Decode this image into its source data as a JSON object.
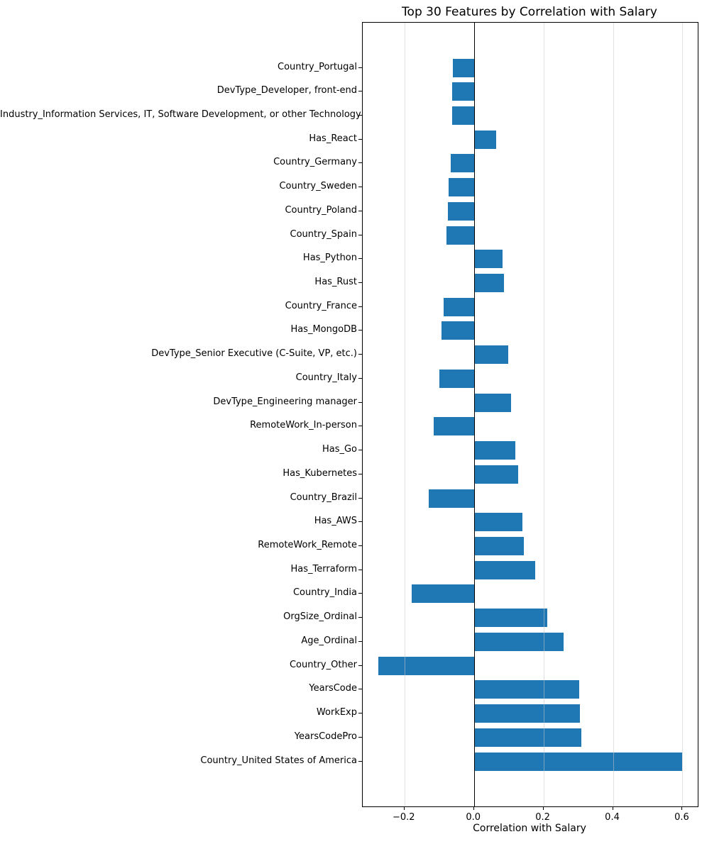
{
  "chart_data": {
    "type": "bar",
    "orientation": "horizontal",
    "title": "Top 30 Features by Correlation with Salary",
    "xlabel": "Correlation with Salary",
    "ylabel": "",
    "bar_color": "#1f77b4",
    "grid": true,
    "grid_color": "#c8c8c8",
    "zero_line_color": "#000000",
    "xlim": [
      -0.32,
      0.644
    ],
    "xticks": [
      -0.2,
      0.0,
      0.2,
      0.4,
      0.6
    ],
    "xtick_labels": [
      "−0.2",
      "0.0",
      "0.2",
      "0.4",
      "0.6"
    ],
    "categories": [
      "Country_Portugal",
      "DevType_Developer, front-end",
      "Industry_Information Services, IT, Software Development, or other Technology",
      "Has_React",
      "Country_Germany",
      "Country_Sweden",
      "Country_Poland",
      "Country_Spain",
      "Has_Python",
      "Has_Rust",
      "Country_France",
      "Has_MongoDB",
      "DevType_Senior Executive (C-Suite, VP, etc.)",
      "Country_Italy",
      "DevType_Engineering manager",
      "RemoteWork_In-person",
      "Has_Go",
      "Has_Kubernetes",
      "Country_Brazil",
      "Has_AWS",
      "RemoteWork_Remote",
      "Has_Terraform",
      "Country_India",
      "OrgSize_Ordinal",
      "Age_Ordinal",
      "Country_Other",
      "YearsCode",
      "WorkExp",
      "YearsCodePro",
      "Country_United States of America"
    ],
    "values": [
      -0.061,
      -0.062,
      -0.062,
      0.063,
      -0.067,
      -0.072,
      -0.074,
      -0.078,
      0.083,
      0.086,
      -0.087,
      -0.093,
      0.098,
      -0.099,
      0.106,
      -0.116,
      0.12,
      0.127,
      -0.131,
      0.139,
      0.143,
      0.176,
      -0.18,
      0.211,
      0.258,
      -0.275,
      0.303,
      0.305,
      0.309,
      0.6
    ]
  }
}
